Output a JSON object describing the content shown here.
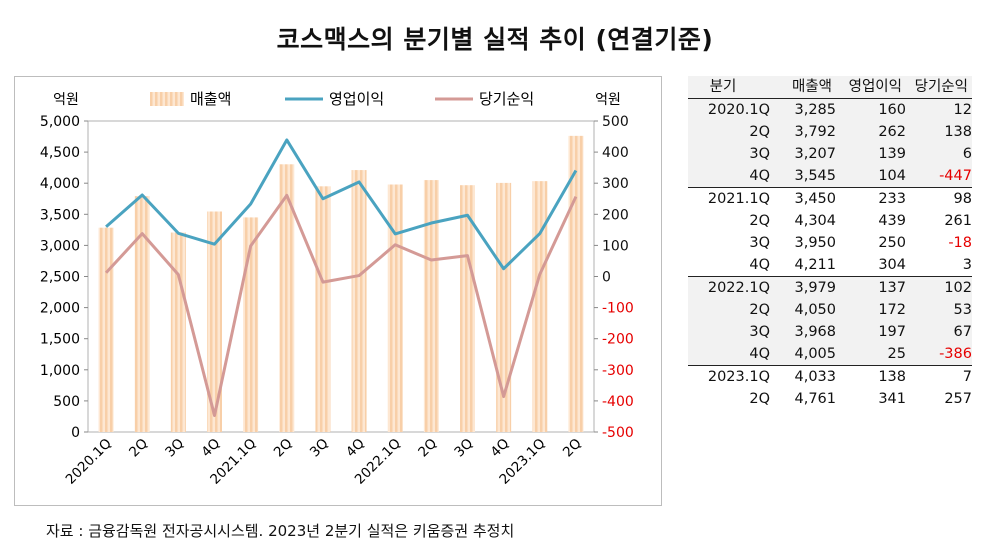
{
  "title": "코스맥스의 분기별 실적 추이 (연결기준)",
  "source": "자료 : 금융감독원 전자공시시스템. 2023년 2분기 실적은 키움증권 추정치",
  "colors": {
    "bar": "#f8cfa8",
    "operating": "#4aa3c0",
    "net": "#d49a96",
    "negative": "#e60000"
  },
  "chart_data": {
    "type": "bar+line",
    "left_axis_label": "억원",
    "right_axis_label": "억원",
    "left_ylim": [
      0,
      5000
    ],
    "left_ticks": [
      "0",
      "500",
      "1,000",
      "1,500",
      "2,000",
      "2,500",
      "3,000",
      "3,500",
      "4,000",
      "4,500",
      "5,000"
    ],
    "right_ylim": [
      -500,
      500
    ],
    "right_ticks": [
      "-500",
      "-400",
      "-300",
      "-200",
      "-100",
      "0",
      "100",
      "200",
      "300",
      "400",
      "500"
    ],
    "categories": [
      "2020.1Q",
      "2Q",
      "3Q",
      "4Q",
      "2021.1Q",
      "2Q",
      "3Q",
      "4Q",
      "2022.1Q",
      "2Q",
      "3Q",
      "4Q",
      "2023.1Q",
      "2Q"
    ],
    "legend": [
      "매출액",
      "영업이익",
      "당기순익"
    ],
    "series": [
      {
        "name": "매출액",
        "type": "bar",
        "axis": "left",
        "values": [
          3285,
          3792,
          3207,
          3545,
          3450,
          4304,
          3950,
          4211,
          3979,
          4050,
          3968,
          4005,
          4033,
          4761
        ]
      },
      {
        "name": "영업이익",
        "type": "line",
        "axis": "right",
        "values": [
          160,
          262,
          139,
          104,
          233,
          439,
          250,
          304,
          137,
          172,
          197,
          25,
          138,
          341
        ]
      },
      {
        "name": "당기순익",
        "type": "line",
        "axis": "right",
        "values": [
          12,
          138,
          6,
          -447,
          98,
          261,
          -18,
          3,
          102,
          53,
          67,
          -386,
          7,
          257
        ]
      }
    ]
  },
  "table": {
    "headers": [
      "분기",
      "매출액",
      "영업이익",
      "당기순익"
    ],
    "rows": [
      [
        "2020.1Q",
        "3,285",
        "160",
        "12"
      ],
      [
        "2Q",
        "3,792",
        "262",
        "138"
      ],
      [
        "3Q",
        "3,207",
        "139",
        "6"
      ],
      [
        "4Q",
        "3,545",
        "104",
        "-447"
      ],
      [
        "2021.1Q",
        "3,450",
        "233",
        "98"
      ],
      [
        "2Q",
        "4,304",
        "439",
        "261"
      ],
      [
        "3Q",
        "3,950",
        "250",
        "-18"
      ],
      [
        "4Q",
        "4,211",
        "304",
        "3"
      ],
      [
        "2022.1Q",
        "3,979",
        "137",
        "102"
      ],
      [
        "2Q",
        "4,050",
        "172",
        "53"
      ],
      [
        "3Q",
        "3,968",
        "197",
        "67"
      ],
      [
        "4Q",
        "4,005",
        "25",
        "-386"
      ],
      [
        "2023.1Q",
        "4,033",
        "138",
        "7"
      ],
      [
        "2Q",
        "4,761",
        "341",
        "257"
      ]
    ]
  }
}
